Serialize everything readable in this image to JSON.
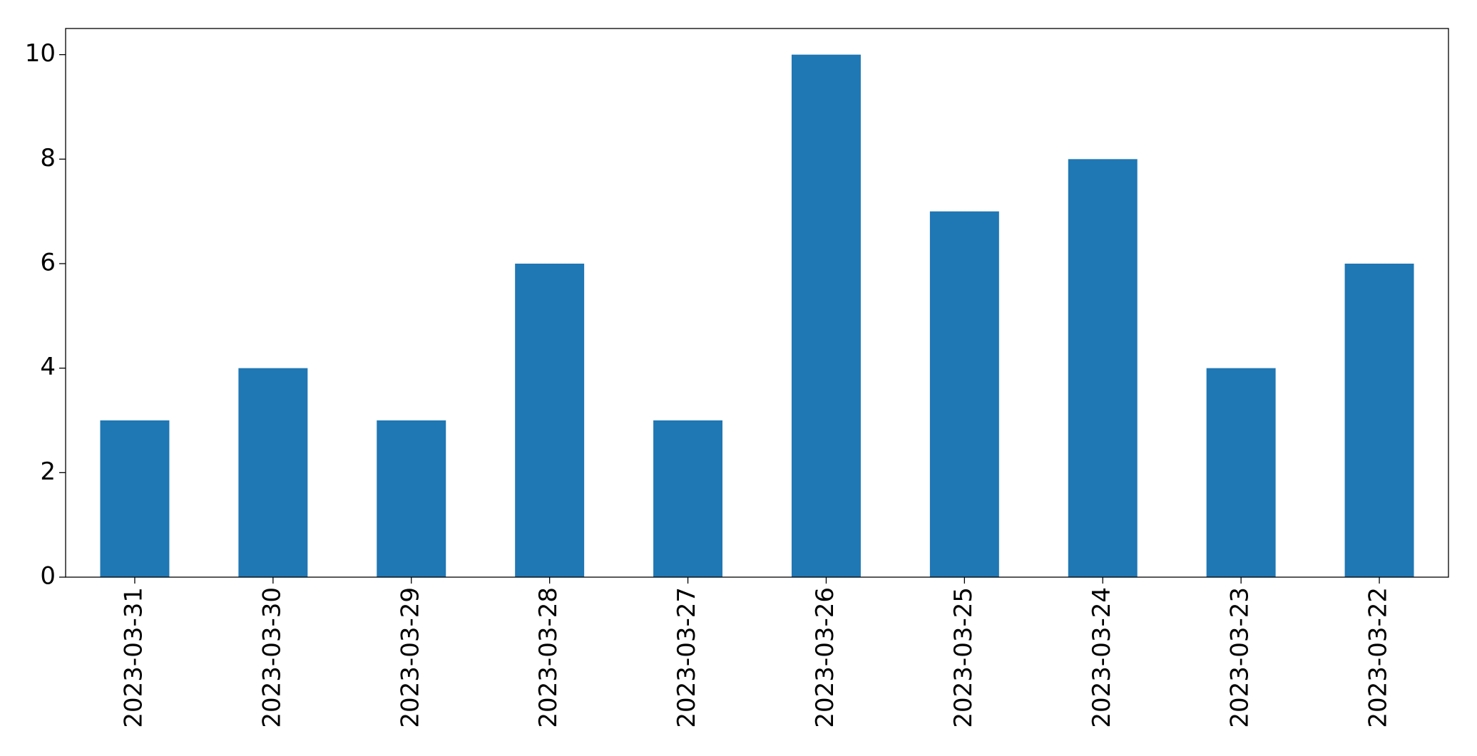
{
  "chart_data": {
    "type": "bar",
    "categories": [
      "2023-03-31",
      "2023-03-30",
      "2023-03-29",
      "2023-03-28",
      "2023-03-27",
      "2023-03-26",
      "2023-03-25",
      "2023-03-24",
      "2023-03-23",
      "2023-03-22"
    ],
    "values": [
      3,
      4,
      3,
      6,
      3,
      10,
      7,
      8,
      4,
      6
    ],
    "color": "#1f77b4",
    "ylim": [
      0,
      10.5
    ],
    "yticks": [
      0,
      2,
      4,
      6,
      8,
      10
    ],
    "grid": false
  }
}
